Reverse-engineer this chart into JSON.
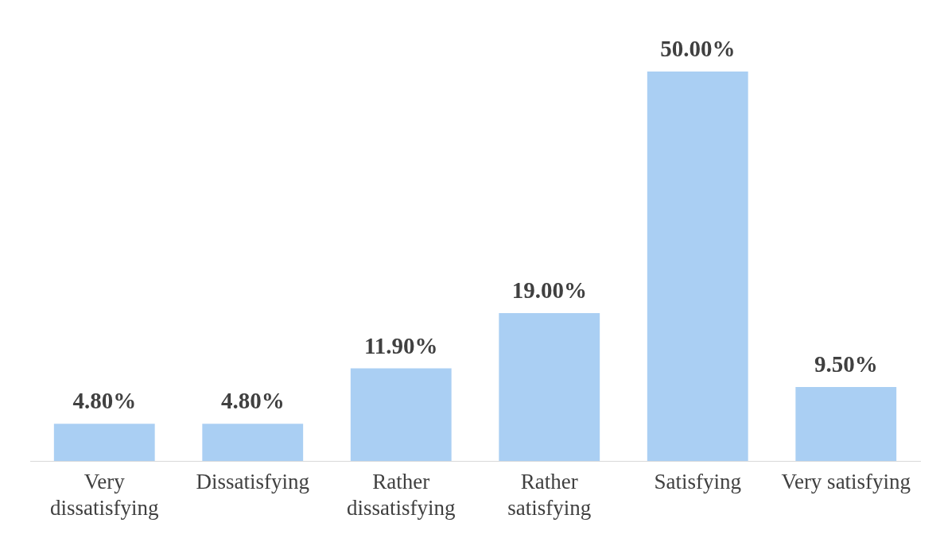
{
  "chart_data": {
    "type": "bar",
    "categories": [
      "Very dissatisfying",
      "Dissatisfying",
      "Rather dissatisfying",
      "Rather satisfying",
      "Satisfying",
      "Very satisfying"
    ],
    "values": [
      4.8,
      4.8,
      11.9,
      19.0,
      50.0,
      9.5
    ],
    "value_labels": [
      "4.80%",
      "4.80%",
      "11.90%",
      "19.00%",
      "50.00%",
      "9.50%"
    ],
    "color": "#aacff3",
    "grid": false,
    "legend": false
  }
}
